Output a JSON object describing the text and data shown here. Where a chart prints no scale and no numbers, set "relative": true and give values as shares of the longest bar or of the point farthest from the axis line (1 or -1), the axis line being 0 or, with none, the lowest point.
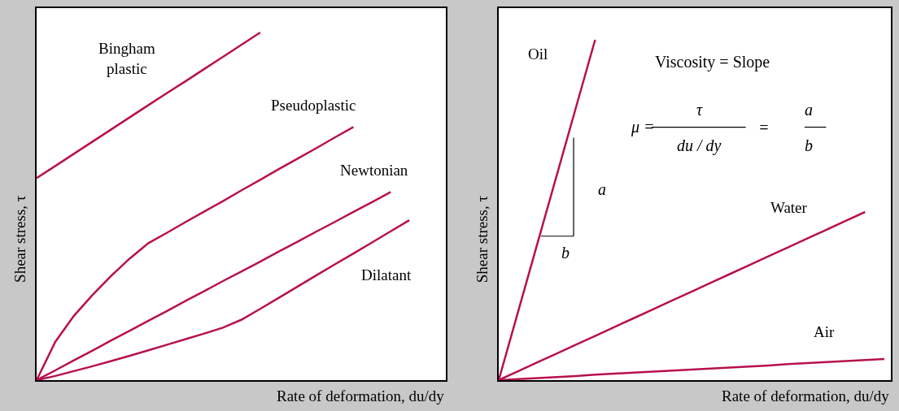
{
  "chart_data": [
    {
      "type": "line",
      "relative": true,
      "xlabel": "Rate of deformation, du/dy",
      "ylabel": "Shear stress, τ",
      "line_style": "solid",
      "categories": [
        null,
        null,
        null,
        null,
        null,
        null,
        null,
        null,
        null,
        null,
        null,
        null,
        null,
        null,
        null,
        null,
        null,
        null,
        null,
        null,
        null
      ],
      "series": [
        {
          "name": "Bingham plastic",
          "color": "#b8104f",
          "values": [
            0.581,
            0.616,
            0.651,
            0.686,
            0.721,
            0.756,
            0.791,
            0.826,
            0.86,
            0.895,
            0.93,
            0.965,
            1.0,
            null,
            null,
            null,
            null,
            null,
            null,
            null,
            null
          ]
        },
        {
          "name": "Pseudoplastic",
          "color": "#b8104f",
          "values": [
            0,
            0.11,
            0.185,
            0.245,
            0.3,
            0.35,
            0.394,
            0.424,
            0.455,
            0.485,
            0.515,
            0.546,
            0.576,
            0.607,
            0.637,
            0.667,
            0.698,
            0.728,
            null,
            null,
            null
          ]
        },
        {
          "name": "Newtonian",
          "color": "#b8104f",
          "values": [
            0,
            0.028,
            0.057,
            0.085,
            0.114,
            0.142,
            0.171,
            0.199,
            0.228,
            0.256,
            0.285,
            0.313,
            0.341,
            0.37,
            0.398,
            0.427,
            0.455,
            0.484,
            0.512,
            0.541,
            null
          ]
        },
        {
          "name": "Dilatant",
          "color": "#b8104f",
          "values": [
            0,
            0.012,
            0.026,
            0.04,
            0.055,
            0.07,
            0.086,
            0.102,
            0.118,
            0.134,
            0.151,
            0.174,
            0.205,
            0.237,
            0.269,
            0.301,
            0.333,
            0.364,
            0.396,
            0.428,
            0.46
          ]
        }
      ]
    },
    {
      "type": "line",
      "relative": true,
      "xlabel": "Rate of deformation, du/dy",
      "ylabel": "Shear stress, τ",
      "line_style": "solid",
      "categories": [
        null,
        null,
        null,
        null,
        null,
        null,
        null,
        null,
        null,
        null,
        null,
        null,
        null,
        null,
        null,
        null,
        null,
        null,
        null,
        null,
        null
      ],
      "annotations": [
        "Viscosity = Slope",
        "μ =",
        "τ",
        "du / dy",
        "=",
        "a",
        "b",
        "a",
        "b"
      ],
      "series": [
        {
          "name": "Oil",
          "color": "#b8104f",
          "values": [
            0,
            0.2,
            0.4,
            0.6,
            0.8,
            1.0,
            null,
            null,
            null,
            null,
            null,
            null,
            null,
            null,
            null,
            null,
            null,
            null,
            null,
            null,
            null
          ]
        },
        {
          "name": "Water",
          "color": "#b8104f",
          "values": [
            0,
            0.026,
            0.052,
            0.078,
            0.104,
            0.13,
            0.156,
            0.182,
            0.208,
            0.234,
            0.26,
            0.286,
            0.312,
            0.338,
            0.364,
            0.39,
            0.416,
            0.442,
            0.468,
            0.494,
            null
          ]
        },
        {
          "name": "Air",
          "color": "#b8104f",
          "values": [
            0,
            0.003,
            0.006,
            0.009,
            0.012,
            0.016,
            0.019,
            0.022,
            0.025,
            0.028,
            0.031,
            0.034,
            0.037,
            0.04,
            0.043,
            0.047,
            0.05,
            0.053,
            0.056,
            0.059,
            0.062
          ]
        }
      ]
    }
  ]
}
